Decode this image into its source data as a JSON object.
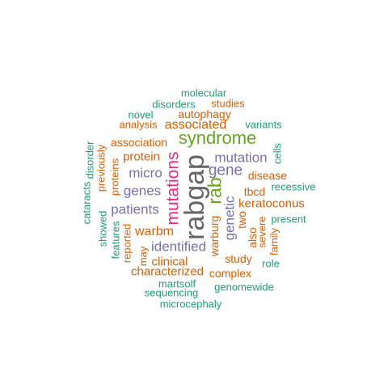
{
  "colors": {
    "teal": "#1b9e77",
    "orange": "#d95f02",
    "purple": "#7570b3",
    "magenta": "#e7298a",
    "green": "#66a61e",
    "gray": "#666666"
  },
  "words": [
    {
      "text": "rabgap",
      "color": "gray"
    },
    {
      "text": "syndrome",
      "color": "green"
    },
    {
      "text": "mutations",
      "color": "magenta"
    },
    {
      "text": "rab",
      "color": "green"
    },
    {
      "text": "gene",
      "color": "purple"
    },
    {
      "text": "mutation",
      "color": "purple"
    },
    {
      "text": "genes",
      "color": "purple"
    },
    {
      "text": "micro",
      "color": "purple"
    },
    {
      "text": "patients",
      "color": "purple"
    },
    {
      "text": "genetic",
      "color": "purple"
    },
    {
      "text": "identified",
      "color": "purple"
    },
    {
      "text": "associated",
      "color": "orange"
    },
    {
      "text": "protein",
      "color": "orange"
    },
    {
      "text": "warbm",
      "color": "orange"
    },
    {
      "text": "association",
      "color": "orange"
    },
    {
      "text": "characterized",
      "color": "orange"
    },
    {
      "text": "disease",
      "color": "orange"
    },
    {
      "text": "keratoconus",
      "color": "orange"
    },
    {
      "text": "clinical",
      "color": "orange"
    },
    {
      "text": "autophagy",
      "color": "orange"
    },
    {
      "text": "studies",
      "color": "orange"
    },
    {
      "text": "analysis",
      "color": "orange"
    },
    {
      "text": "tbcd",
      "color": "orange"
    },
    {
      "text": "study",
      "color": "orange"
    },
    {
      "text": "complex",
      "color": "orange"
    },
    {
      "text": "warburg",
      "color": "orange"
    },
    {
      "text": "two",
      "color": "orange"
    },
    {
      "text": "also",
      "color": "orange"
    },
    {
      "text": "severe",
      "color": "orange"
    },
    {
      "text": "family",
      "color": "orange"
    },
    {
      "text": "may",
      "color": "orange"
    },
    {
      "text": "reported",
      "color": "orange"
    },
    {
      "text": "proteins",
      "color": "orange"
    },
    {
      "text": "previously",
      "color": "orange"
    },
    {
      "text": "molecular",
      "color": "teal"
    },
    {
      "text": "disorders",
      "color": "teal"
    },
    {
      "text": "novel",
      "color": "teal"
    },
    {
      "text": "variants",
      "color": "teal"
    },
    {
      "text": "cells",
      "color": "teal"
    },
    {
      "text": "recessive",
      "color": "teal"
    },
    {
      "text": "present",
      "color": "teal"
    },
    {
      "text": "role",
      "color": "teal"
    },
    {
      "text": "genomewide",
      "color": "teal"
    },
    {
      "text": "martsolf",
      "color": "teal"
    },
    {
      "text": "sequencing",
      "color": "teal"
    },
    {
      "text": "microcephaly",
      "color": "teal"
    },
    {
      "text": "disorder",
      "color": "teal"
    },
    {
      "text": "cataracts",
      "color": "teal"
    },
    {
      "text": "showed",
      "color": "teal"
    },
    {
      "text": "features",
      "color": "teal"
    }
  ]
}
